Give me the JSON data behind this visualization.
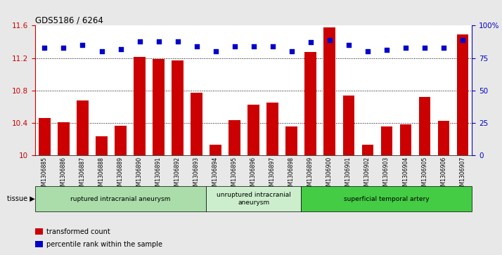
{
  "title": "GDS5186 / 6264",
  "samples": [
    "GSM1306885",
    "GSM1306886",
    "GSM1306887",
    "GSM1306888",
    "GSM1306889",
    "GSM1306890",
    "GSM1306891",
    "GSM1306892",
    "GSM1306893",
    "GSM1306894",
    "GSM1306895",
    "GSM1306896",
    "GSM1306897",
    "GSM1306898",
    "GSM1306899",
    "GSM1306900",
    "GSM1306901",
    "GSM1306902",
    "GSM1306903",
    "GSM1306904",
    "GSM1306905",
    "GSM1306906",
    "GSM1306907"
  ],
  "bar_values": [
    10.46,
    10.41,
    10.68,
    10.24,
    10.37,
    11.21,
    11.19,
    11.17,
    10.77,
    10.13,
    10.44,
    10.63,
    10.65,
    10.36,
    11.27,
    11.58,
    10.74,
    10.13,
    10.36,
    10.38,
    10.72,
    10.43,
    11.49
  ],
  "percentile_values": [
    83,
    83,
    85,
    80,
    82,
    88,
    88,
    88,
    84,
    80,
    84,
    84,
    84,
    80,
    87,
    89,
    85,
    80,
    81,
    83,
    83,
    83,
    89
  ],
  "ylim_left": [
    10.0,
    11.6
  ],
  "ylim_right": [
    0,
    100
  ],
  "yticks_left": [
    10.0,
    10.4,
    10.8,
    11.2,
    11.6
  ],
  "ytick_labels_left": [
    "10",
    "10.4",
    "10.8",
    "11.2",
    "11.6"
  ],
  "yticks_right": [
    0,
    25,
    50,
    75,
    100
  ],
  "ytick_labels_right": [
    "0",
    "25",
    "50",
    "75",
    "100%"
  ],
  "bar_color": "#cc0000",
  "dot_color": "#0000cc",
  "bar_bottom": 10.0,
  "groups": [
    {
      "label": "ruptured intracranial aneurysm",
      "start": 0,
      "end": 9,
      "color": "#aaddaa"
    },
    {
      "label": "unruptured intracranial\naneurysm",
      "start": 9,
      "end": 14,
      "color": "#cceecc"
    },
    {
      "label": "superficial temporal artery",
      "start": 14,
      "end": 23,
      "color": "#44cc44"
    }
  ],
  "tissue_label": "tissue ▶",
  "legend_items": [
    {
      "color": "#cc0000",
      "label": "transformed count"
    },
    {
      "color": "#0000cc",
      "label": "percentile rank within the sample"
    }
  ],
  "background_color": "#e8e8e8",
  "plot_bg_color": "#ffffff",
  "grid_color": "#000000",
  "grid_dotted_at": [
    10.4,
    10.8,
    11.2
  ]
}
